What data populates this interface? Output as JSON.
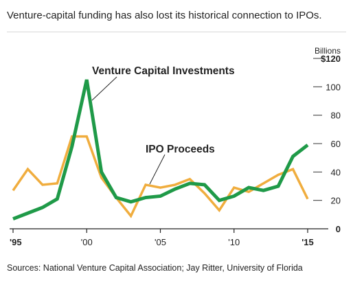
{
  "chart_data": {
    "type": "line",
    "title": "Venture-capital funding has also lost its historical connection to IPOs.",
    "unit_label": "Billions",
    "x": [
      1995,
      1996,
      1997,
      1998,
      1999,
      2000,
      2001,
      2002,
      2003,
      2004,
      2005,
      2006,
      2007,
      2008,
      2009,
      2010,
      2011,
      2012,
      2013,
      2014,
      2015
    ],
    "x_tick_labels": [
      "'95",
      "'00",
      "'05",
      "'10",
      "'15"
    ],
    "x_ticks": [
      1995,
      2000,
      2005,
      2010,
      2015
    ],
    "y_ticks": [
      0,
      20,
      40,
      60,
      80,
      100,
      120
    ],
    "y_tick_labels": [
      "0",
      "20",
      "40",
      "60",
      "80",
      "100",
      "$120"
    ],
    "ylim": [
      0,
      120
    ],
    "xlim": [
      1995,
      2015
    ],
    "grid": false,
    "series": [
      {
        "name": "Venture Capital Investments",
        "color": "#1f9a48",
        "values": [
          7,
          11,
          15,
          21,
          58,
          105,
          40,
          22,
          19,
          22,
          23,
          28,
          32,
          31,
          20,
          23,
          29,
          27,
          30,
          51,
          59
        ]
      },
      {
        "name": "IPO Proceeds",
        "color": "#f0ad3e",
        "values": [
          27,
          42,
          31,
          32,
          65,
          65,
          36,
          22,
          9,
          31,
          29,
          31,
          35,
          25,
          13,
          29,
          26,
          32,
          38,
          42,
          21
        ]
      }
    ],
    "source": "Sources: National Venture Capital Association; Jay Ritter, University of Florida"
  }
}
